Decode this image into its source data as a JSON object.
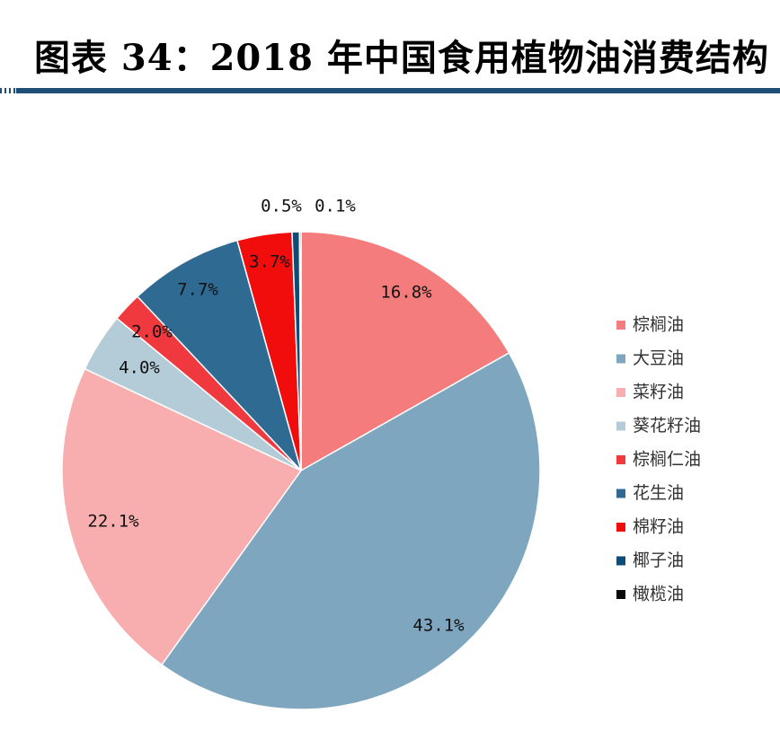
{
  "header": {
    "title": "图表 34：2018 年中国食用植物油消费结构"
  },
  "chart_data": {
    "type": "pie",
    "title": "",
    "categories": [
      "棕榈油",
      "大豆油",
      "菜籽油",
      "葵花籽油",
      "棕榈仁油",
      "花生油",
      "棉籽油",
      "椰子油",
      "橄榄油"
    ],
    "values": [
      16.8,
      43.1,
      22.1,
      4.0,
      2.0,
      7.7,
      3.7,
      0.5,
      0.1
    ],
    "data_labels": [
      "16.8%",
      "43.1%",
      "22.1%",
      "4.0%",
      "2.0%",
      "7.7%",
      "3.7%",
      "0.5%",
      "0.1%"
    ],
    "colors": [
      "#f47c7c",
      "#7fa6bf",
      "#f8aeae",
      "#b4ccd8",
      "#f0393f",
      "#2f6a93",
      "#f20d0d",
      "#0f4c78",
      "#0a0a0a"
    ],
    "legend_position": "right"
  }
}
